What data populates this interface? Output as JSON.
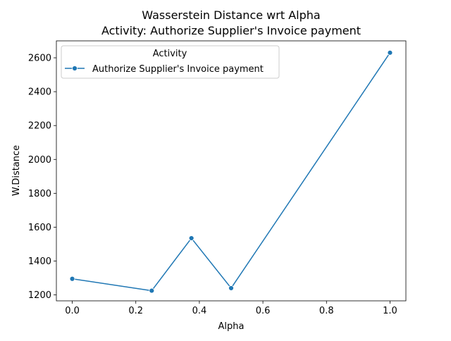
{
  "chart_data": {
    "type": "line",
    "title": "Wasserstein Distance wrt Alpha",
    "subtitle": "Activity: Authorize Supplier's Invoice payment",
    "xlabel": "Alpha",
    "ylabel": "W.Distance",
    "xlim": [
      -0.05,
      1.05
    ],
    "ylim": [
      1165,
      2700
    ],
    "xticks": [
      0.0,
      0.2,
      0.4,
      0.6,
      0.8,
      1.0
    ],
    "xtick_labels": [
      "0.0",
      "0.2",
      "0.4",
      "0.6",
      "0.8",
      "1.0"
    ],
    "yticks": [
      1200,
      1400,
      1600,
      1800,
      2000,
      2200,
      2400,
      2600
    ],
    "ytick_labels": [
      "1200",
      "1400",
      "1600",
      "1800",
      "2000",
      "2200",
      "2400",
      "2600"
    ],
    "grid": false,
    "legend": {
      "title": "Activity",
      "placement": "top-left"
    },
    "series": [
      {
        "name": "Authorize Supplier's Invoice payment",
        "color": "#1f77b4",
        "marker": "circle",
        "x": [
          0.0,
          0.25,
          0.375,
          0.5,
          1.0
        ],
        "y": [
          1295,
          1225,
          1535,
          1240,
          2630
        ]
      }
    ]
  }
}
